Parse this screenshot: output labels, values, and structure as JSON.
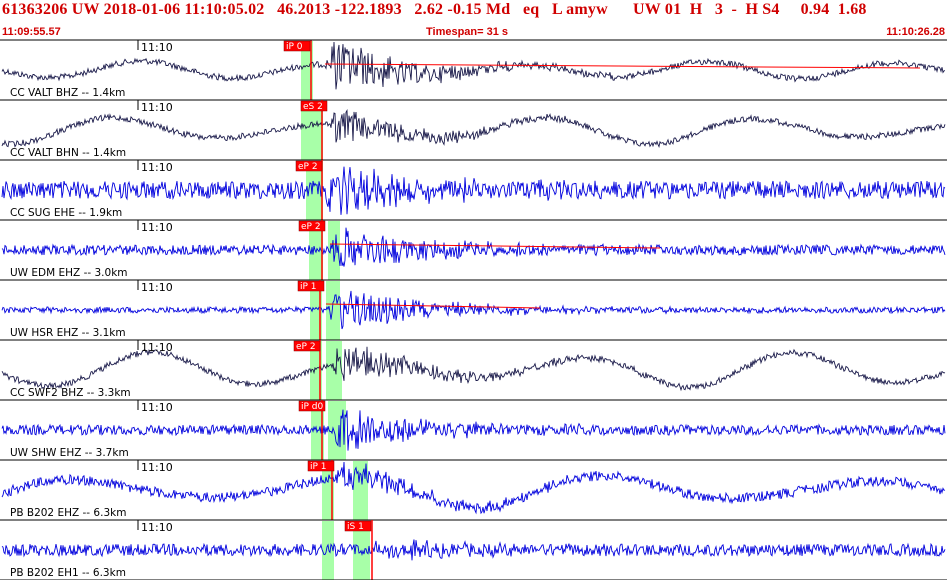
{
  "header": {
    "title": "61363206 UW 2018-01-06 11:10:05.02   46.2013 -122.1893   2.62 -0.15 Md   eq   L amyw      UW 01  H   3  -  H S4     0.94  1.68",
    "start_time": "11:09:55.57",
    "timespan": "Timespan=  31 s",
    "end_time": "11:10:26.28"
  },
  "colors": {
    "header_text": "#d00000",
    "trace_dark": "#1a1a4a",
    "trace_blue": "#0000dd",
    "pick": "#ff0000",
    "window_fill": "#a8ffa8",
    "divider": "#000000"
  },
  "tick_label": "11:10",
  "traces": [
    {
      "label": "CC VALT BHZ -- 1.4km",
      "pick": "iP 0",
      "color": "dark",
      "s_pick": ""
    },
    {
      "label": "CC VALT BHN -- 1.4km",
      "pick": "eS 2",
      "color": "dark",
      "s_pick": ""
    },
    {
      "label": "CC SUG EHE -- 1.9km",
      "pick": "eP 2",
      "color": "blue",
      "s_pick": ""
    },
    {
      "label": "UW EDM EHZ -- 3.0km",
      "pick": "eP 2",
      "color": "blue",
      "s_pick": ""
    },
    {
      "label": "UW HSR EHZ -- 3.1km",
      "pick": "iP 1",
      "color": "blue",
      "s_pick": ""
    },
    {
      "label": "CC SWF2 BHZ -- 3.3km",
      "pick": "eP 2",
      "color": "dark",
      "s_pick": ""
    },
    {
      "label": "UW SHW EHZ -- 3.7km",
      "pick": "iP d0",
      "color": "blue",
      "s_pick": ""
    },
    {
      "label": "PB B202 EHZ -- 6.3km",
      "pick": "iP 1",
      "color": "blue",
      "s_pick": ""
    },
    {
      "label": "PB B202 EH1 -- 6.3km",
      "pick": "",
      "color": "blue",
      "s_pick": "iS 1"
    }
  ]
}
